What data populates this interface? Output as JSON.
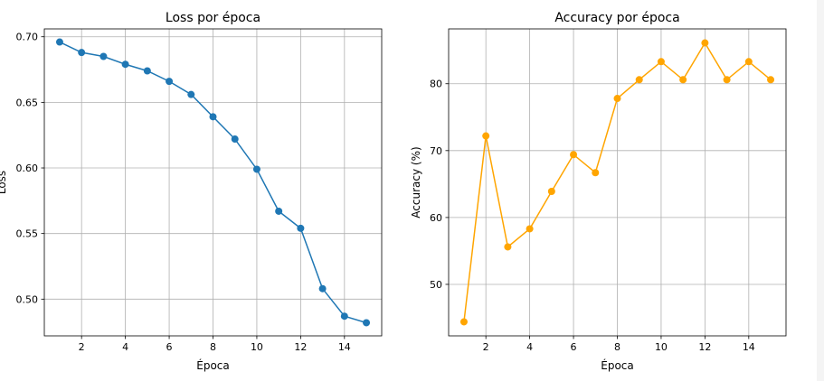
{
  "chart_data": [
    {
      "type": "line",
      "title": "Loss por época",
      "xlabel": "Época",
      "ylabel": "Loss",
      "x": [
        1,
        2,
        3,
        4,
        5,
        6,
        7,
        8,
        9,
        10,
        11,
        12,
        13,
        14,
        15
      ],
      "values": [
        0.696,
        0.688,
        0.685,
        0.679,
        0.674,
        0.666,
        0.656,
        0.639,
        0.622,
        0.599,
        0.567,
        0.554,
        0.508,
        0.487,
        0.482
      ],
      "xlim": [
        0.3,
        15.7
      ],
      "ylim": [
        0.472,
        0.706
      ],
      "xticks": [
        2,
        4,
        6,
        8,
        10,
        12,
        14
      ],
      "xtick_labels": [
        "2",
        "4",
        "6",
        "8",
        "10",
        "12",
        "14"
      ],
      "yticks": [
        0.5,
        0.55,
        0.6,
        0.65,
        0.7
      ],
      "ytick_labels": [
        "0.50",
        "0.55",
        "0.60",
        "0.65",
        "0.70"
      ],
      "color": "#1f77b4",
      "grid": true
    },
    {
      "type": "line",
      "title": "Accuracy por época",
      "xlabel": "Época",
      "ylabel": "Accuracy (%)",
      "x": [
        1,
        2,
        3,
        4,
        5,
        6,
        7,
        8,
        9,
        10,
        11,
        12,
        13,
        14,
        15
      ],
      "values": [
        44.4,
        72.2,
        55.6,
        58.3,
        63.9,
        69.4,
        66.7,
        77.8,
        80.6,
        83.3,
        80.6,
        86.1,
        80.6,
        83.3,
        80.6
      ],
      "xlim": [
        0.3,
        15.7
      ],
      "ylim": [
        42.3,
        88.2
      ],
      "xticks": [
        2,
        4,
        6,
        8,
        10,
        12,
        14
      ],
      "xtick_labels": [
        "2",
        "4",
        "6",
        "8",
        "10",
        "12",
        "14"
      ],
      "yticks": [
        50,
        60,
        70,
        80
      ],
      "ytick_labels": [
        "50",
        "60",
        "70",
        "80"
      ],
      "color": "#ffa500",
      "grid": true
    }
  ]
}
